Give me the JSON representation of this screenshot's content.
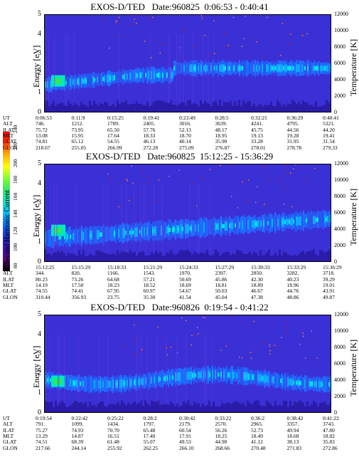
{
  "panels": [
    {
      "title": "EXOS-D/TED   Date:960825  0:06:53 - 0:40:41",
      "rows": [
        [
          "UT",
          "0:06:53",
          "0:11:9",
          "0:15:25",
          "0:19:41",
          "0:23:49",
          "0:28:5",
          "0:32:21",
          "0:36:29",
          "0:40:41"
        ],
        [
          "ALT",
          "746.",
          "1212.",
          "1789.",
          "2405.",
          "3016.",
          "3639.",
          "4241.",
          "4795.",
          "5321."
        ],
        [
          "ILAT",
          "75.72",
          "73.95",
          "65.50",
          "57.76",
          "52.13",
          "48.17",
          "45.75",
          "44.56",
          "44.20"
        ],
        [
          "MLT",
          "13.08",
          "15.95",
          "17.64",
          "18.33",
          "18.70",
          "18.95",
          "19.13",
          "19.28",
          "19.41"
        ],
        [
          "GLAT",
          "74.81",
          "65.12",
          "54.55",
          "46.13",
          "40.14",
          "35.90",
          "33.28",
          "31.95",
          "31.54"
        ],
        [
          "GLON",
          "218.67",
          "255.05",
          "266.99",
          "272.28",
          "275.09",
          "276.87",
          "278.01",
          "278.78",
          "279.33"
        ]
      ]
    },
    {
      "title": "EXOS-D/TED   Date:960825  15:12:25 - 15:36:29",
      "rows": [
        [
          "UT",
          "15:12:25",
          "15:15:29",
          "15:18:33",
          "15:21:29",
          "15:24:33",
          "15:27:29",
          "15:30:33",
          "15:33:29",
          "15:36:29"
        ],
        [
          "ALT",
          "344.",
          "820.",
          "1166.",
          "1543.",
          "1970.",
          "2397.",
          "2850.",
          "3282.",
          "3718."
        ],
        [
          "ILAT",
          "80.23",
          "73.26",
          "64.68",
          "57.21",
          "50.69",
          "45.86",
          "42.30",
          "40.23",
          "39.29"
        ],
        [
          "MLT",
          "14.19",
          "17.50",
          "18.23",
          "18.52",
          "18.69",
          "18.81",
          "18.89",
          "18.96",
          "19.01"
        ],
        [
          "GLAT",
          "74.55",
          "74.41",
          "67.95",
          "60.97",
          "54.67",
          "50.03",
          "46.67",
          "44.76",
          "43.91"
        ],
        [
          "GLON",
          "310.44",
          "356.93",
          "23.75",
          "35.30",
          "41.54",
          "45.04",
          "47.38",
          "48.86",
          "49.87"
        ]
      ]
    },
    {
      "title": "EXOS-D/TED   Date:960826  0:19:54 - 0:41:22",
      "rows": [
        [
          "UT",
          "0:19:54",
          "0:22:42",
          "0:25:22",
          "0:28:2",
          "0:30:42",
          "0:33:22",
          "0:36:2",
          "0:38:42",
          "0:41:22"
        ],
        [
          "ALT",
          "791.",
          "1099.",
          "1434.",
          "1797.",
          "2179.",
          "2570.",
          "2965.",
          "3357.",
          "3743."
        ],
        [
          "ILAT",
          "75.27",
          "74.93",
          "70.70",
          "65.48",
          "60.54",
          "56.26",
          "52.73",
          "49.94",
          "47.80"
        ],
        [
          "MLT",
          "13.29",
          "14.87",
          "16.51",
          "17.40",
          "17.91",
          "18.25",
          "18.49",
          "18.68",
          "18.82"
        ],
        [
          "GLAT",
          "74.51",
          "68.39",
          "61.48",
          "55.07",
          "49.53",
          "44.90",
          "41.12",
          "38.13",
          "35.83"
        ],
        [
          "GLON",
          "217.66",
          "244.14",
          "255.92",
          "262.25",
          "266.10",
          "268.66",
          "270.48",
          "271.83",
          "272.86"
        ]
      ]
    }
  ],
  "axes": {
    "ylabel": "Energy [eV]",
    "ylabel_right": "Temperature [K]",
    "yticks": [
      "0",
      "1",
      "2",
      "3",
      "4",
      "5"
    ],
    "rticks": [
      "0",
      "2000",
      "4000",
      "6000",
      "8000",
      "10000",
      "12000"
    ]
  },
  "colorbar": {
    "label": "Second Harmonic Current",
    "ticks": [
      "80",
      "100",
      "120",
      "140",
      "160",
      "180",
      "200",
      "220",
      "240"
    ],
    "colors": [
      "#000000",
      "#5a0a78",
      "#3a10b0",
      "#1a30d8",
      "#0a70ff",
      "#00c0ff",
      "#00e8c0",
      "#30e860",
      "#80ff30",
      "#ffff00",
      "#ffb000",
      "#ff4000",
      "#ff0000"
    ]
  },
  "chart_data": [
    {
      "type": "heatmap",
      "title": "EXOS-D/TED   Date:960825  0:06:53 - 0:40:41",
      "xlabel": "UT",
      "ylabel": "Energy [eV]",
      "ylabel_right": "Temperature [K]",
      "ylim": [
        0,
        5
      ],
      "ylim_right": [
        0,
        12000
      ],
      "colorbar_range": [
        80,
        240
      ],
      "colorbar_label": "Second Harmonic Current"
    },
    {
      "type": "heatmap",
      "title": "EXOS-D/TED   Date:960825  15:12:25 - 15:36:29",
      "xlabel": "UT",
      "ylabel": "Energy [eV]",
      "ylabel_right": "Temperature [K]",
      "ylim": [
        0,
        5
      ],
      "ylim_right": [
        0,
        12000
      ],
      "colorbar_range": [
        80,
        240
      ],
      "colorbar_label": "Second Harmonic Current"
    },
    {
      "type": "heatmap",
      "title": "EXOS-D/TED   Date:960826  0:19:54 - 0:41:22",
      "xlabel": "UT",
      "ylabel": "Energy [eV]",
      "ylabel_right": "Temperature [K]",
      "ylim": [
        0,
        5
      ],
      "ylim_right": [
        0,
        12000
      ],
      "colorbar_range": [
        80,
        240
      ],
      "colorbar_label": "Second Harmonic Current"
    }
  ]
}
